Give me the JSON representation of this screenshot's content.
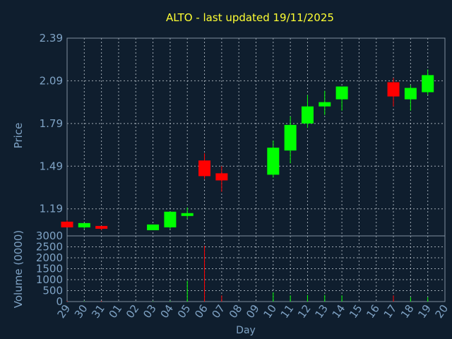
{
  "chart_data": {
    "type": "candlestick",
    "title": "ALTO - last updated 19/11/2025",
    "xlabel": "Day",
    "price_ylabel": "Price",
    "volume_ylabel": "Volume (0000)",
    "price_ticks": [
      "2.39",
      "2.09",
      "1.79",
      "1.49",
      "1.19"
    ],
    "price_ylim": [
      1.0,
      2.39
    ],
    "volume_ticks": [
      "3000",
      "2500",
      "2000",
      "1500",
      "1000",
      "500",
      "0"
    ],
    "volume_ylim": [
      0,
      3000
    ],
    "x_tick_labels": [
      "29",
      "30",
      "31",
      "01",
      "02",
      "03",
      "04",
      "05",
      "06",
      "07",
      "08",
      "09",
      "10",
      "11",
      "12",
      "13",
      "14",
      "15",
      "16",
      "17",
      "18",
      "19",
      "20"
    ],
    "candles": [
      {
        "x": "29",
        "open": 1.1,
        "close": 1.06,
        "high": 1.11,
        "low": 1.06,
        "volume": 30
      },
      {
        "x": "30",
        "open": 1.06,
        "close": 1.09,
        "high": 1.09,
        "low": 1.05,
        "volume": 20
      },
      {
        "x": "31",
        "open": 1.07,
        "close": 1.05,
        "high": 1.07,
        "low": 1.04,
        "volume": 30
      },
      {
        "x": "03",
        "open": 1.04,
        "close": 1.08,
        "high": 1.08,
        "low": 1.04,
        "volume": 20
      },
      {
        "x": "04",
        "open": 1.06,
        "close": 1.17,
        "high": 1.17,
        "low": 1.05,
        "volume": 30
      },
      {
        "x": "05",
        "open": 1.14,
        "close": 1.16,
        "high": 1.2,
        "low": 1.12,
        "volume": 950
      },
      {
        "x": "06",
        "open": 1.53,
        "close": 1.42,
        "high": 1.58,
        "low": 1.4,
        "volume": 2550
      },
      {
        "x": "07",
        "open": 1.44,
        "close": 1.39,
        "high": 1.49,
        "low": 1.31,
        "volume": 280
      },
      {
        "x": "10",
        "open": 1.43,
        "close": 1.62,
        "high": 1.67,
        "low": 1.41,
        "volume": 420
      },
      {
        "x": "11",
        "open": 1.6,
        "close": 1.78,
        "high": 1.84,
        "low": 1.51,
        "volume": 280
      },
      {
        "x": "12",
        "open": 1.79,
        "close": 1.91,
        "high": 1.99,
        "low": 1.76,
        "volume": 300
      },
      {
        "x": "13",
        "open": 1.91,
        "close": 1.94,
        "high": 2.02,
        "low": 1.85,
        "volume": 300
      },
      {
        "x": "14",
        "open": 1.96,
        "close": 2.05,
        "high": 2.05,
        "low": 1.88,
        "volume": 280
      },
      {
        "x": "17",
        "open": 2.08,
        "close": 1.98,
        "high": 2.11,
        "low": 1.91,
        "volume": 280
      },
      {
        "x": "18",
        "open": 1.96,
        "close": 2.04,
        "high": 2.06,
        "low": 1.88,
        "volume": 200
      },
      {
        "x": "19",
        "open": 2.01,
        "close": 2.13,
        "high": 2.17,
        "low": 1.99,
        "volume": 200
      }
    ],
    "colors": {
      "background": "#0f1e2e",
      "up": "#00ff00",
      "down": "#ff0000",
      "title": "#ffff33",
      "axis_text": "#7fa3c5"
    },
    "grid": true
  }
}
